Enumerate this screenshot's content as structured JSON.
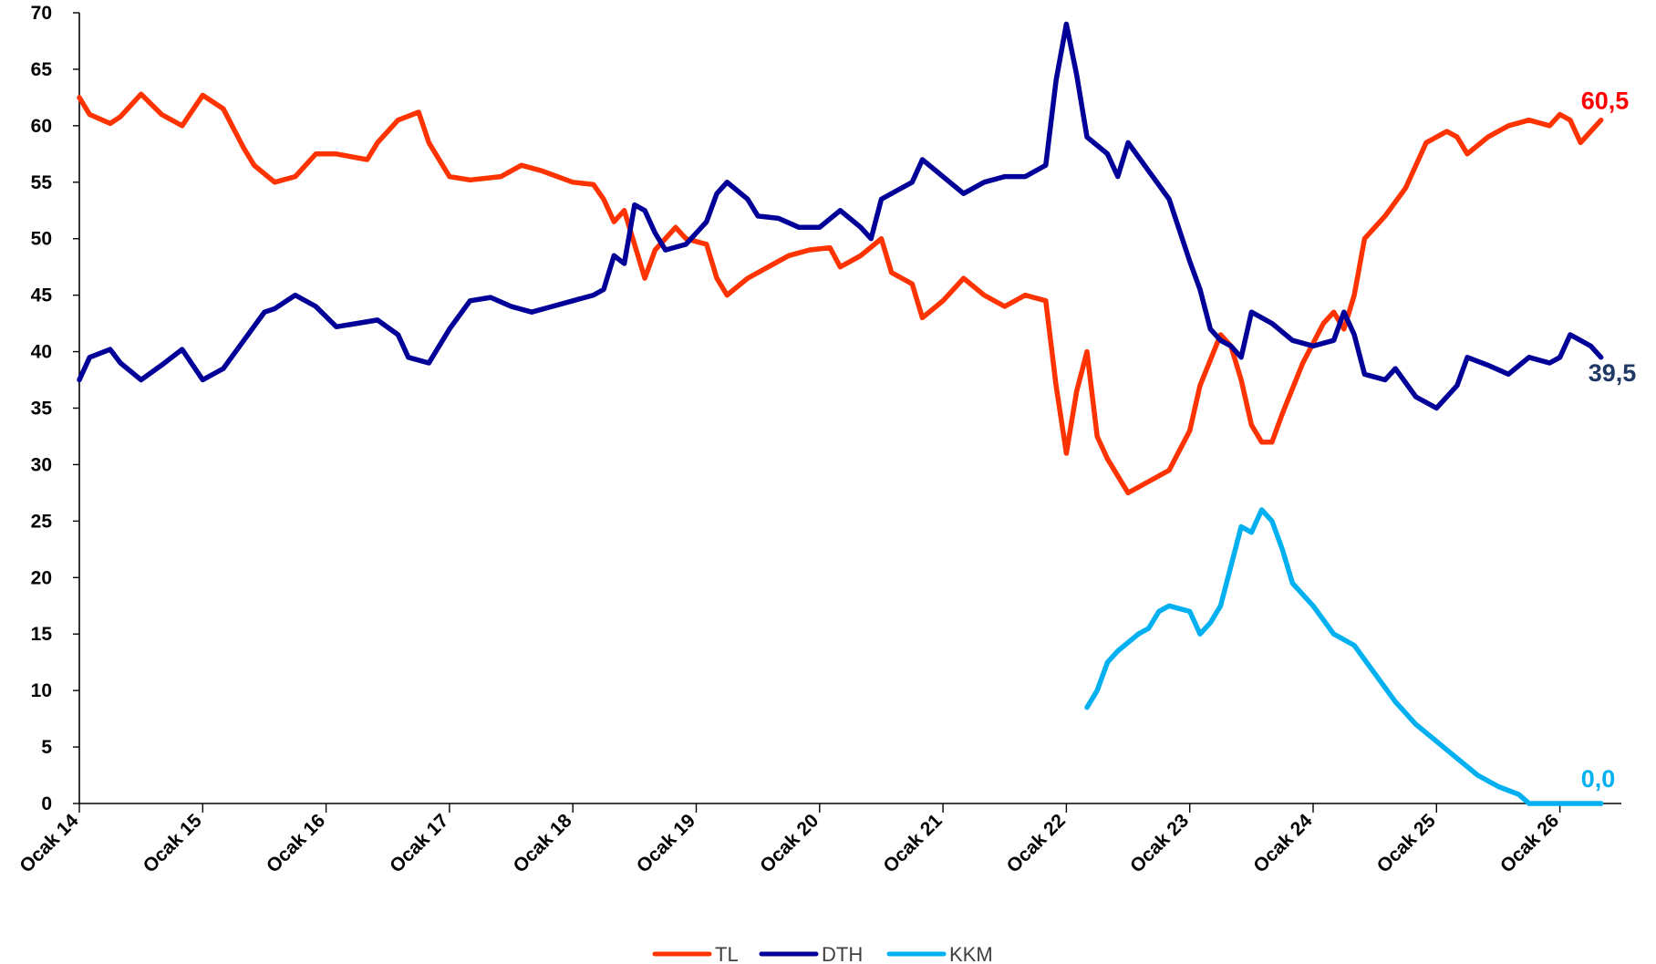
{
  "chart_data": {
    "type": "line",
    "title": "",
    "xlabel": "",
    "ylabel": "",
    "ylim": [
      0,
      70
    ],
    "yticks": [
      0,
      5,
      10,
      15,
      20,
      25,
      30,
      35,
      40,
      45,
      50,
      55,
      60,
      65,
      70
    ],
    "xlim": [
      "2014-01",
      "2026-05"
    ],
    "xticks": [
      {
        "date": "2014-01",
        "label": "Ocak 14"
      },
      {
        "date": "2015-01",
        "label": "Ocak 15"
      },
      {
        "date": "2016-01",
        "label": "Ocak 16"
      },
      {
        "date": "2017-01",
        "label": "Ocak 17"
      },
      {
        "date": "2018-01",
        "label": "Ocak 18"
      },
      {
        "date": "2019-01",
        "label": "Ocak 19"
      },
      {
        "date": "2020-01",
        "label": "Ocak 20"
      },
      {
        "date": "2021-01",
        "label": "Ocak 21"
      },
      {
        "date": "2022-01",
        "label": "Ocak 22"
      },
      {
        "date": "2023-01",
        "label": "Ocak 23"
      },
      {
        "date": "2024-01",
        "label": "Ocak 24"
      },
      {
        "date": "2025-01",
        "label": "Ocak 25"
      },
      {
        "date": "2026-01",
        "label": "Ocak 26"
      }
    ],
    "grid": false,
    "legend_position": "bottom",
    "series": [
      {
        "name": "TL",
        "color": "#FF3300",
        "end_label": "60,5",
        "end_label_color": "#FF0000",
        "points": [
          [
            "2014-01",
            62.5
          ],
          [
            "2014-02",
            61.0
          ],
          [
            "2014-04",
            60.2
          ],
          [
            "2014-05",
            60.8
          ],
          [
            "2014-07",
            62.8
          ],
          [
            "2014-09",
            61.0
          ],
          [
            "2014-11",
            60.0
          ],
          [
            "2015-01",
            62.7
          ],
          [
            "2015-03",
            61.5
          ],
          [
            "2015-05",
            58.0
          ],
          [
            "2015-06",
            56.5
          ],
          [
            "2015-08",
            55.0
          ],
          [
            "2015-10",
            55.5
          ],
          [
            "2015-12",
            57.5
          ],
          [
            "2016-02",
            57.5
          ],
          [
            "2016-05",
            57.0
          ],
          [
            "2016-06",
            58.5
          ],
          [
            "2016-08",
            60.5
          ],
          [
            "2016-10",
            61.2
          ],
          [
            "2016-11",
            58.5
          ],
          [
            "2017-01",
            55.5
          ],
          [
            "2017-03",
            55.2
          ],
          [
            "2017-06",
            55.5
          ],
          [
            "2017-08",
            56.5
          ],
          [
            "2017-10",
            56.0
          ],
          [
            "2018-01",
            55.0
          ],
          [
            "2018-03",
            54.8
          ],
          [
            "2018-04",
            53.5
          ],
          [
            "2018-05",
            51.5
          ],
          [
            "2018-06",
            52.5
          ],
          [
            "2018-08",
            46.5
          ],
          [
            "2018-09",
            49.0
          ],
          [
            "2018-11",
            51.0
          ],
          [
            "2018-12",
            50.0
          ],
          [
            "2019-02",
            49.5
          ],
          [
            "2019-03",
            46.5
          ],
          [
            "2019-04",
            45.0
          ],
          [
            "2019-06",
            46.5
          ],
          [
            "2019-08",
            47.5
          ],
          [
            "2019-10",
            48.5
          ],
          [
            "2019-12",
            49.0
          ],
          [
            "2020-02",
            49.2
          ],
          [
            "2020-03",
            47.5
          ],
          [
            "2020-05",
            48.5
          ],
          [
            "2020-07",
            50.0
          ],
          [
            "2020-08",
            47.0
          ],
          [
            "2020-10",
            46.0
          ],
          [
            "2020-11",
            43.0
          ],
          [
            "2021-01",
            44.5
          ],
          [
            "2021-03",
            46.5
          ],
          [
            "2021-05",
            45.0
          ],
          [
            "2021-07",
            44.0
          ],
          [
            "2021-09",
            45.0
          ],
          [
            "2021-11",
            44.5
          ],
          [
            "2021-12",
            37.0
          ],
          [
            "2022-01",
            31.0
          ],
          [
            "2022-02",
            36.5
          ],
          [
            "2022-03",
            40.0
          ],
          [
            "2022-04",
            32.5
          ],
          [
            "2022-05",
            30.5
          ],
          [
            "2022-06",
            29.0
          ],
          [
            "2022-07",
            27.5
          ],
          [
            "2022-09",
            28.5
          ],
          [
            "2022-11",
            29.5
          ],
          [
            "2023-01",
            33.0
          ],
          [
            "2023-02",
            37.0
          ],
          [
            "2023-04",
            41.5
          ],
          [
            "2023-05",
            40.5
          ],
          [
            "2023-06",
            37.5
          ],
          [
            "2023-07",
            33.5
          ],
          [
            "2023-08",
            32.0
          ],
          [
            "2023-09",
            32.0
          ],
          [
            "2023-10",
            34.5
          ],
          [
            "2023-12",
            39.0
          ],
          [
            "2024-02",
            42.5
          ],
          [
            "2024-03",
            43.5
          ],
          [
            "2024-04",
            42.0
          ],
          [
            "2024-05",
            45.0
          ],
          [
            "2024-06",
            50.0
          ],
          [
            "2024-08",
            52.0
          ],
          [
            "2024-10",
            54.5
          ],
          [
            "2024-12",
            58.5
          ],
          [
            "2025-02",
            59.5
          ],
          [
            "2025-03",
            59.0
          ],
          [
            "2025-04",
            57.5
          ],
          [
            "2025-06",
            59.0
          ],
          [
            "2025-08",
            60.0
          ],
          [
            "2025-10",
            60.5
          ],
          [
            "2025-12",
            60.0
          ],
          [
            "2026-01",
            61.0
          ],
          [
            "2026-02",
            60.5
          ],
          [
            "2026-03",
            58.5
          ],
          [
            "2026-04",
            59.5
          ],
          [
            "2026-05",
            60.5
          ]
        ]
      },
      {
        "name": "DTH",
        "color": "#000099",
        "end_label": "39,5",
        "end_label_color": "#1F3864",
        "points": [
          [
            "2014-01",
            37.5
          ],
          [
            "2014-02",
            39.5
          ],
          [
            "2014-04",
            40.2
          ],
          [
            "2014-05",
            39.0
          ],
          [
            "2014-07",
            37.5
          ],
          [
            "2014-09",
            38.8
          ],
          [
            "2014-11",
            40.2
          ],
          [
            "2015-01",
            37.5
          ],
          [
            "2015-03",
            38.5
          ],
          [
            "2015-05",
            41.0
          ],
          [
            "2015-07",
            43.5
          ],
          [
            "2015-08",
            43.8
          ],
          [
            "2015-10",
            45.0
          ],
          [
            "2015-12",
            44.0
          ],
          [
            "2016-02",
            42.2
          ],
          [
            "2016-04",
            42.5
          ],
          [
            "2016-06",
            42.8
          ],
          [
            "2016-08",
            41.5
          ],
          [
            "2016-09",
            39.5
          ],
          [
            "2016-11",
            39.0
          ],
          [
            "2017-01",
            42.0
          ],
          [
            "2017-03",
            44.5
          ],
          [
            "2017-05",
            44.8
          ],
          [
            "2017-07",
            44.0
          ],
          [
            "2017-09",
            43.5
          ],
          [
            "2017-11",
            44.0
          ],
          [
            "2018-01",
            44.5
          ],
          [
            "2018-03",
            45.0
          ],
          [
            "2018-04",
            45.5
          ],
          [
            "2018-05",
            48.5
          ],
          [
            "2018-06",
            47.8
          ],
          [
            "2018-07",
            53.0
          ],
          [
            "2018-08",
            52.5
          ],
          [
            "2018-09",
            50.5
          ],
          [
            "2018-10",
            49.0
          ],
          [
            "2018-12",
            49.5
          ],
          [
            "2019-02",
            51.5
          ],
          [
            "2019-03",
            54.0
          ],
          [
            "2019-04",
            55.0
          ],
          [
            "2019-06",
            53.5
          ],
          [
            "2019-07",
            52.0
          ],
          [
            "2019-09",
            51.8
          ],
          [
            "2019-11",
            51.0
          ],
          [
            "2020-01",
            51.0
          ],
          [
            "2020-03",
            52.5
          ],
          [
            "2020-05",
            51.0
          ],
          [
            "2020-06",
            50.0
          ],
          [
            "2020-07",
            53.5
          ],
          [
            "2020-09",
            54.5
          ],
          [
            "2020-10",
            55.0
          ],
          [
            "2020-11",
            57.0
          ],
          [
            "2021-01",
            55.5
          ],
          [
            "2021-03",
            54.0
          ],
          [
            "2021-05",
            55.0
          ],
          [
            "2021-07",
            55.5
          ],
          [
            "2021-09",
            55.5
          ],
          [
            "2021-11",
            56.5
          ],
          [
            "2021-12",
            64.0
          ],
          [
            "2022-01",
            69.0
          ],
          [
            "2022-02",
            64.5
          ],
          [
            "2022-03",
            59.0
          ],
          [
            "2022-05",
            57.5
          ],
          [
            "2022-06",
            55.5
          ],
          [
            "2022-07",
            58.5
          ],
          [
            "2022-09",
            56.0
          ],
          [
            "2022-11",
            53.5
          ],
          [
            "2023-01",
            48.0
          ],
          [
            "2023-02",
            45.5
          ],
          [
            "2023-03",
            42.0
          ],
          [
            "2023-04",
            41.0
          ],
          [
            "2023-05",
            40.5
          ],
          [
            "2023-06",
            39.5
          ],
          [
            "2023-07",
            43.5
          ],
          [
            "2023-09",
            42.5
          ],
          [
            "2023-11",
            41.0
          ],
          [
            "2024-01",
            40.5
          ],
          [
            "2024-03",
            41.0
          ],
          [
            "2024-04",
            43.5
          ],
          [
            "2024-05",
            41.5
          ],
          [
            "2024-06",
            38.0
          ],
          [
            "2024-08",
            37.5
          ],
          [
            "2024-09",
            38.5
          ],
          [
            "2024-11",
            36.0
          ],
          [
            "2025-01",
            35.0
          ],
          [
            "2025-03",
            37.0
          ],
          [
            "2025-04",
            39.5
          ],
          [
            "2025-06",
            38.8
          ],
          [
            "2025-08",
            38.0
          ],
          [
            "2025-10",
            39.5
          ],
          [
            "2025-12",
            39.0
          ],
          [
            "2026-01",
            39.5
          ],
          [
            "2026-02",
            41.5
          ],
          [
            "2026-03",
            41.0
          ],
          [
            "2026-04",
            40.5
          ],
          [
            "2026-05",
            39.5
          ]
        ]
      },
      {
        "name": "KKM",
        "color": "#00B0F0",
        "end_label": "0,0",
        "end_label_color": "#00B0F0",
        "points": [
          [
            "2022-03",
            8.5
          ],
          [
            "2022-04",
            10.0
          ],
          [
            "2022-05",
            12.5
          ],
          [
            "2022-06",
            13.5
          ],
          [
            "2022-08",
            15.0
          ],
          [
            "2022-09",
            15.5
          ],
          [
            "2022-10",
            17.0
          ],
          [
            "2022-11",
            17.5
          ],
          [
            "2023-01",
            17.0
          ],
          [
            "2023-02",
            15.0
          ],
          [
            "2023-03",
            16.0
          ],
          [
            "2023-04",
            17.5
          ],
          [
            "2023-05",
            21.0
          ],
          [
            "2023-06",
            24.5
          ],
          [
            "2023-07",
            24.0
          ],
          [
            "2023-08",
            26.0
          ],
          [
            "2023-09",
            25.0
          ],
          [
            "2023-10",
            22.5
          ],
          [
            "2023-11",
            19.5
          ],
          [
            "2024-01",
            17.5
          ],
          [
            "2024-03",
            15.0
          ],
          [
            "2024-05",
            14.0
          ],
          [
            "2024-07",
            11.5
          ],
          [
            "2024-09",
            9.0
          ],
          [
            "2024-11",
            7.0
          ],
          [
            "2025-01",
            5.5
          ],
          [
            "2025-03",
            4.0
          ],
          [
            "2025-05",
            2.5
          ],
          [
            "2025-07",
            1.5
          ],
          [
            "2025-09",
            0.8
          ],
          [
            "2025-10",
            0.0
          ],
          [
            "2026-05",
            0.0
          ]
        ]
      }
    ]
  }
}
